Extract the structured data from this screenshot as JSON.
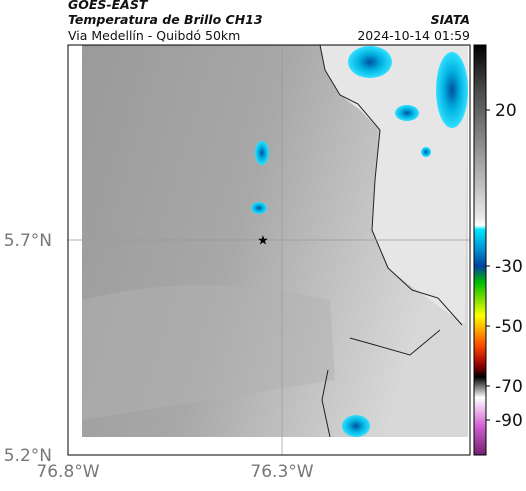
{
  "header": {
    "source": "GOES-EAST",
    "title": "Temperatura de Brillo CH13",
    "region": "Via Medellín - Quibdó 50km",
    "org": "SIATA",
    "datetime": "2024-10-14 01:59"
  },
  "map": {
    "x_labels": [
      "76.8°W",
      "76.3°W"
    ],
    "y_labels": [
      "5.7°N",
      "5.2°N"
    ]
  },
  "colorbar": {
    "ticks": [
      20,
      -30,
      -50,
      -70,
      -90
    ]
  }
}
